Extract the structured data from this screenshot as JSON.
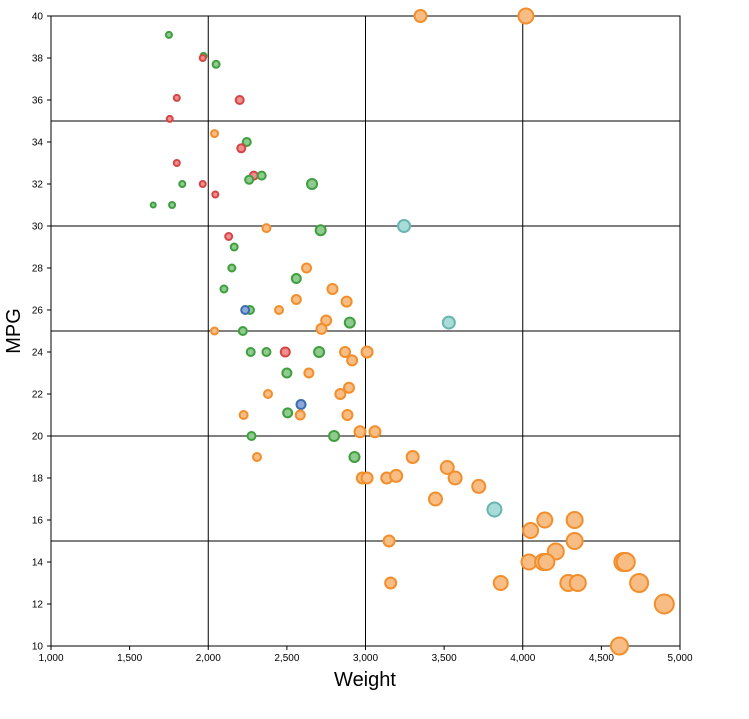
{
  "chart_data": {
    "type": "scatter",
    "xlabel": "Weight",
    "ylabel": "MPG",
    "xlim": [
      1000,
      5000
    ],
    "ylim": [
      10,
      40
    ],
    "x_ticks": [
      1000,
      1500,
      2000,
      2500,
      3000,
      3500,
      4000,
      4500,
      5000
    ],
    "x_tick_labels": [
      "1,000",
      "1,500",
      "2,000",
      "2,500",
      "3,000",
      "3,500",
      "4,000",
      "4,500",
      "5,000"
    ],
    "y_ticks": [
      10,
      12,
      14,
      16,
      18,
      20,
      22,
      24,
      26,
      28,
      30,
      32,
      34,
      36,
      38,
      40
    ],
    "y_tick_labels": [
      "10",
      "12",
      "14",
      "16",
      "18",
      "20",
      "22",
      "24",
      "26",
      "28",
      "30",
      "32",
      "34",
      "36",
      "38",
      "40"
    ],
    "vertical_gridlines_at": [
      2000,
      3000,
      4000
    ],
    "horizontal_gridlines_at": [
      15,
      20,
      25,
      30,
      35
    ],
    "legend": "none",
    "colors": {
      "orange": {
        "fill": "#f8bd84",
        "stroke": "#f28e2b"
      },
      "green": {
        "fill": "#8fca8f",
        "stroke": "#3f9f3f"
      },
      "red": {
        "fill": "#ee8e8e",
        "stroke": "#d64545"
      },
      "teal": {
        "fill": "#a8dcd8",
        "stroke": "#6ab5b0"
      },
      "blue": {
        "fill": "#8aa8d8",
        "stroke": "#3d6cb0"
      }
    },
    "points": [
      {
        "x": 3350,
        "y": 40,
        "r": 6,
        "c": "orange"
      },
      {
        "x": 4020,
        "y": 40,
        "r": 7.5,
        "c": "orange"
      },
      {
        "x": 1750,
        "y": 39.1,
        "r": 3,
        "c": "green"
      },
      {
        "x": 1970,
        "y": 38.1,
        "r": 3,
        "c": "green"
      },
      {
        "x": 1965,
        "y": 38,
        "r": 3,
        "c": "red"
      },
      {
        "x": 2050,
        "y": 37.7,
        "r": 3.5,
        "c": "green"
      },
      {
        "x": 1800,
        "y": 36.1,
        "r": 3,
        "c": "red"
      },
      {
        "x": 2200,
        "y": 36,
        "r": 4,
        "c": "red"
      },
      {
        "x": 1755,
        "y": 35.1,
        "r": 3,
        "c": "red"
      },
      {
        "x": 2040,
        "y": 34.4,
        "r": 3.5,
        "c": "orange"
      },
      {
        "x": 2245,
        "y": 34,
        "r": 4,
        "c": "green"
      },
      {
        "x": 2210,
        "y": 33.7,
        "r": 4,
        "c": "red"
      },
      {
        "x": 1800,
        "y": 33,
        "r": 3,
        "c": "red"
      },
      {
        "x": 2290,
        "y": 32.4,
        "r": 4,
        "c": "red"
      },
      {
        "x": 2340,
        "y": 32.4,
        "r": 4,
        "c": "green"
      },
      {
        "x": 2260,
        "y": 32.2,
        "r": 4,
        "c": "green"
      },
      {
        "x": 2660,
        "y": 32,
        "r": 5,
        "c": "green"
      },
      {
        "x": 1835,
        "y": 32,
        "r": 3,
        "c": "green"
      },
      {
        "x": 1965,
        "y": 32,
        "r": 3,
        "c": "red"
      },
      {
        "x": 2045,
        "y": 31.5,
        "r": 3,
        "c": "red"
      },
      {
        "x": 1650,
        "y": 31,
        "r": 2.5,
        "c": "green"
      },
      {
        "x": 1770,
        "y": 31,
        "r": 3,
        "c": "green"
      },
      {
        "x": 3245,
        "y": 30,
        "r": 6,
        "c": "teal"
      },
      {
        "x": 2370,
        "y": 29.9,
        "r": 4,
        "c": "orange"
      },
      {
        "x": 2715,
        "y": 29.8,
        "r": 5,
        "c": "green"
      },
      {
        "x": 2130,
        "y": 29.5,
        "r": 3.5,
        "c": "red"
      },
      {
        "x": 2165,
        "y": 29,
        "r": 3.5,
        "c": "green"
      },
      {
        "x": 2150,
        "y": 28,
        "r": 3.5,
        "c": "green"
      },
      {
        "x": 2625,
        "y": 28,
        "r": 4.5,
        "c": "orange"
      },
      {
        "x": 2560,
        "y": 27.5,
        "r": 4.5,
        "c": "green"
      },
      {
        "x": 2100,
        "y": 27,
        "r": 3.5,
        "c": "green"
      },
      {
        "x": 2790,
        "y": 27,
        "r": 5,
        "c": "orange"
      },
      {
        "x": 2560,
        "y": 26.5,
        "r": 4.5,
        "c": "orange"
      },
      {
        "x": 2880,
        "y": 26.4,
        "r": 5,
        "c": "orange"
      },
      {
        "x": 2450,
        "y": 26,
        "r": 4,
        "c": "orange"
      },
      {
        "x": 2265,
        "y": 26,
        "r": 4,
        "c": "green"
      },
      {
        "x": 2235,
        "y": 26,
        "r": 4,
        "c": "blue"
      },
      {
        "x": 2750,
        "y": 25.5,
        "r": 5,
        "c": "orange"
      },
      {
        "x": 3530,
        "y": 25.4,
        "r": 6,
        "c": "teal"
      },
      {
        "x": 2900,
        "y": 25.4,
        "r": 5,
        "c": "green"
      },
      {
        "x": 2720,
        "y": 25.1,
        "r": 5,
        "c": "orange"
      },
      {
        "x": 2220,
        "y": 25,
        "r": 4,
        "c": "green"
      },
      {
        "x": 2040,
        "y": 25,
        "r": 3.5,
        "c": "orange"
      },
      {
        "x": 2270,
        "y": 24,
        "r": 4,
        "c": "green"
      },
      {
        "x": 2370,
        "y": 24,
        "r": 4,
        "c": "green"
      },
      {
        "x": 2490,
        "y": 24,
        "r": 4.5,
        "c": "red"
      },
      {
        "x": 2705,
        "y": 24,
        "r": 5,
        "c": "green"
      },
      {
        "x": 2870,
        "y": 24,
        "r": 5,
        "c": "orange"
      },
      {
        "x": 3010,
        "y": 24,
        "r": 5.5,
        "c": "orange"
      },
      {
        "x": 2915,
        "y": 23.6,
        "r": 5,
        "c": "orange"
      },
      {
        "x": 2640,
        "y": 23,
        "r": 4.5,
        "c": "orange"
      },
      {
        "x": 2500,
        "y": 23,
        "r": 4.5,
        "c": "green"
      },
      {
        "x": 2895,
        "y": 22.3,
        "r": 5,
        "c": "orange"
      },
      {
        "x": 2380,
        "y": 22,
        "r": 4,
        "c": "orange"
      },
      {
        "x": 2840,
        "y": 22,
        "r": 5,
        "c": "orange"
      },
      {
        "x": 2590,
        "y": 21.5,
        "r": 4.5,
        "c": "blue"
      },
      {
        "x": 2505,
        "y": 21.1,
        "r": 4.5,
        "c": "green"
      },
      {
        "x": 2885,
        "y": 21,
        "r": 5,
        "c": "orange"
      },
      {
        "x": 2585,
        "y": 21,
        "r": 4.5,
        "c": "orange"
      },
      {
        "x": 2225,
        "y": 21,
        "r": 4,
        "c": "orange"
      },
      {
        "x": 2965,
        "y": 20.2,
        "r": 5.5,
        "c": "orange"
      },
      {
        "x": 3060,
        "y": 20.2,
        "r": 5.5,
        "c": "orange"
      },
      {
        "x": 2275,
        "y": 20,
        "r": 4,
        "c": "green"
      },
      {
        "x": 2800,
        "y": 20,
        "r": 5,
        "c": "green"
      },
      {
        "x": 2930,
        "y": 19,
        "r": 5,
        "c": "green"
      },
      {
        "x": 3300,
        "y": 19,
        "r": 6,
        "c": "orange"
      },
      {
        "x": 2310,
        "y": 19,
        "r": 4,
        "c": "orange"
      },
      {
        "x": 3520,
        "y": 18.5,
        "r": 6.5,
        "c": "orange"
      },
      {
        "x": 3570,
        "y": 18,
        "r": 6.5,
        "c": "orange"
      },
      {
        "x": 3720,
        "y": 17.6,
        "r": 6.5,
        "c": "orange"
      },
      {
        "x": 2980,
        "y": 18,
        "r": 5.5,
        "c": "orange"
      },
      {
        "x": 3010,
        "y": 18,
        "r": 5.5,
        "c": "orange"
      },
      {
        "x": 3135,
        "y": 18,
        "r": 5.5,
        "c": "orange"
      },
      {
        "x": 3195,
        "y": 18.1,
        "r": 6,
        "c": "orange"
      },
      {
        "x": 3445,
        "y": 17,
        "r": 6.5,
        "c": "orange"
      },
      {
        "x": 3820,
        "y": 16.5,
        "r": 7,
        "c": "teal"
      },
      {
        "x": 4140,
        "y": 16,
        "r": 7.5,
        "c": "orange"
      },
      {
        "x": 4330,
        "y": 16,
        "r": 8,
        "c": "orange"
      },
      {
        "x": 4050,
        "y": 15.5,
        "r": 7.5,
        "c": "orange"
      },
      {
        "x": 3150,
        "y": 15,
        "r": 5.5,
        "c": "orange"
      },
      {
        "x": 4330,
        "y": 15,
        "r": 8,
        "c": "orange"
      },
      {
        "x": 4210,
        "y": 14.5,
        "r": 8,
        "c": "orange"
      },
      {
        "x": 4040,
        "y": 14,
        "r": 7.5,
        "c": "orange"
      },
      {
        "x": 4130,
        "y": 14,
        "r": 8,
        "c": "orange"
      },
      {
        "x": 4150,
        "y": 14,
        "r": 8,
        "c": "orange"
      },
      {
        "x": 4640,
        "y": 14,
        "r": 9,
        "c": "orange"
      },
      {
        "x": 4655,
        "y": 14,
        "r": 9,
        "c": "orange"
      },
      {
        "x": 4740,
        "y": 13,
        "r": 9,
        "c": "orange"
      },
      {
        "x": 3860,
        "y": 13,
        "r": 7,
        "c": "orange"
      },
      {
        "x": 4290,
        "y": 13,
        "r": 8,
        "c": "orange"
      },
      {
        "x": 4350,
        "y": 13,
        "r": 8,
        "c": "orange"
      },
      {
        "x": 3160,
        "y": 13,
        "r": 5.5,
        "c": "orange"
      },
      {
        "x": 4900,
        "y": 12,
        "r": 9.5,
        "c": "orange"
      },
      {
        "x": 4615,
        "y": 10,
        "r": 8.5,
        "c": "orange"
      }
    ]
  }
}
